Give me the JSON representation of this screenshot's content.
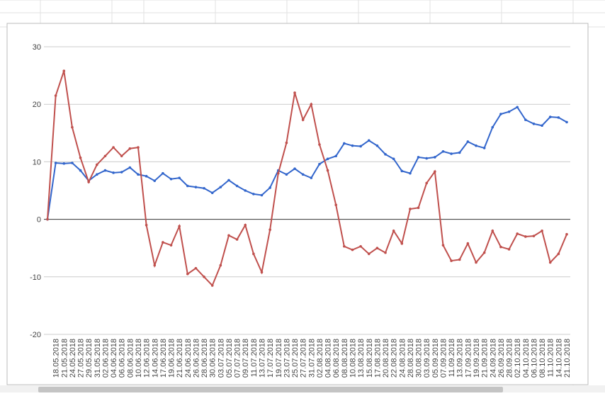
{
  "chart_data": {
    "type": "line",
    "categories": [
      null,
      "18.05.2018",
      "21.05.2018",
      "24.05.2018",
      "27.05.2018",
      "29.05.2018",
      "31.05.2018",
      "02.06.2018",
      "04.06.2018",
      "06.06.2018",
      "08.06.2018",
      "10.06.2018",
      "12.06.2018",
      "14.06.2018",
      "17.06.2018",
      "19.06.2018",
      "21.06.2018",
      "24.06.2018",
      "26.06.2018",
      "28.06.2018",
      "30.06.2018",
      "03.07.2018",
      "05.07.2018",
      "07.07.2018",
      "09.07.2018",
      "11.07.2018",
      "13.07.2018",
      "17.07.2018",
      "19.07.2018",
      "23.07.2018",
      "25.07.2018",
      "27.07.2018",
      "31.07.2018",
      "02.08.2018",
      "04.08.2018",
      "06.08.2018",
      "08.08.2018",
      "10.08.2018",
      "13.08.2018",
      "15.08.2018",
      "17.08.2018",
      "20.08.2018",
      "22.08.2018",
      "24.08.2018",
      "28.08.2018",
      "30.08.2018",
      "03.09.2018",
      "05.09.2018",
      "07.09.2018",
      "11.09.2018",
      "13.09.2018",
      "17.09.2018",
      "19.09.2018",
      "21.09.2018",
      "24.09.2018",
      "26.09.2018",
      "28.09.2018",
      "02.10.2018",
      "04.10.2018",
      "06.10.2018",
      "08.10.2018",
      "11.10.2018",
      "14.10.2018",
      "21.10.2018"
    ],
    "series": [
      {
        "color": "#3366cc",
        "values": [
          0,
          9.8,
          9.7,
          9.8,
          8.5,
          6.7,
          7.8,
          8.5,
          8.1,
          8.2,
          9.0,
          7.8,
          7.5,
          6.7,
          8.0,
          7.0,
          7.2,
          5.8,
          5.6,
          5.4,
          4.6,
          5.6,
          6.8,
          5.8,
          5.0,
          4.4,
          4.2,
          5.5,
          8.5,
          7.8,
          8.8,
          7.8,
          7.2,
          9.6,
          10.5,
          11.0,
          13.2,
          12.8,
          12.7,
          13.7,
          12.8,
          11.3,
          10.5,
          8.4,
          8.0,
          10.8,
          10.6,
          10.8,
          11.8,
          11.4,
          11.6,
          13.5,
          12.8,
          12.4,
          16,
          18.3,
          18.7,
          19.5,
          17.3,
          16.6,
          16.3,
          17.8,
          17.7,
          16.9
        ]
      },
      {
        "color": "#c0504d",
        "values": [
          0,
          21.5,
          25.8,
          16,
          10.7,
          6.5,
          9.5,
          11,
          12.5,
          11.0,
          12.3,
          12.5,
          -1,
          -8,
          -4,
          -4.5,
          -1.2,
          -9.5,
          -8.5,
          -10,
          -11.5,
          -8,
          -2.8,
          -3.5,
          -1.0,
          -6,
          -9.2,
          -1.8,
          8,
          13.3,
          22,
          17.3,
          20,
          13,
          8.5,
          2.5,
          -4.7,
          -5.3,
          -4.7,
          -6,
          -5,
          -5.8,
          -2,
          -4.2,
          1.8,
          2,
          6.3,
          8.3,
          -4.5,
          -7.2,
          -7.0,
          -4.2,
          -7.5,
          -5.8,
          -2,
          -4.8,
          -5.2,
          -2.5,
          -3,
          -2.9,
          -2,
          -7.5,
          -6,
          -2.6
        ]
      }
    ],
    "ylim": [
      -20,
      30
    ],
    "yticks": [
      -20,
      -10,
      0,
      10,
      20,
      30
    ],
    "grid": true
  }
}
